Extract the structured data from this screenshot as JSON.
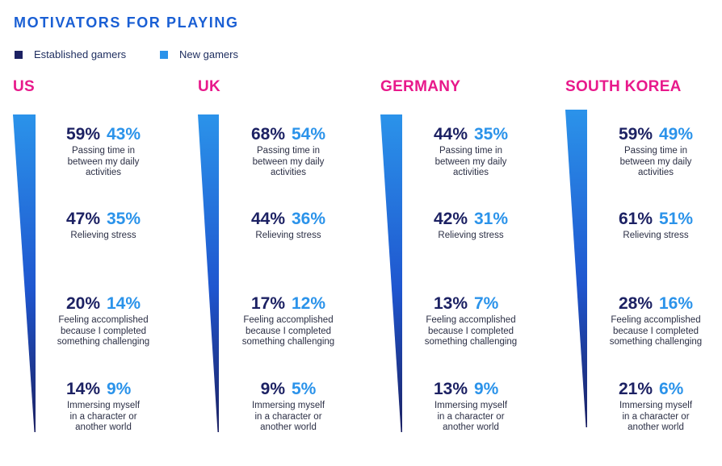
{
  "title": "MOTIVATORS FOR PLAYING",
  "colors": {
    "established": "#1c2163",
    "new": "#2b93ea",
    "country": "#e8198b",
    "title": "#1a5fd4"
  },
  "legend": [
    {
      "label": "Established gamers",
      "color": "#1c2163"
    },
    {
      "label": "New gamers",
      "color": "#2b93ea"
    }
  ],
  "chart_data": {
    "type": "table",
    "title": "MOTIVATORS FOR PLAYING",
    "series": [
      {
        "name": "Established gamers"
      },
      {
        "name": "New gamers"
      }
    ],
    "motivators": [
      "Passing time in between my daily activities",
      "Relieving stress",
      "Feeling accomplished because I completed something challenging",
      "Immersing myself in a character or another world"
    ],
    "countries": [
      {
        "name": "US",
        "items": [
          {
            "established": "59%",
            "new": "43%",
            "label_lines": [
              "Passing time in",
              "between my daily",
              "activities"
            ]
          },
          {
            "established": "47%",
            "new": "35%",
            "label_lines": [
              "Relieving stress"
            ]
          },
          {
            "established": "20%",
            "new": "14%",
            "label_lines": [
              "Feeling accomplished",
              "because I completed",
              "something challenging"
            ]
          },
          {
            "established": "14%",
            "new": "9%",
            "label_lines": [
              "Immersing myself",
              "in a character or",
              "another world"
            ]
          }
        ]
      },
      {
        "name": "UK",
        "items": [
          {
            "established": "68%",
            "new": "54%",
            "label_lines": [
              "Passing time in",
              "between my daily",
              "activities"
            ]
          },
          {
            "established": "44%",
            "new": "36%",
            "label_lines": [
              "Relieving stress"
            ]
          },
          {
            "established": "17%",
            "new": "12%",
            "label_lines": [
              "Feeling accomplished",
              "because I completed",
              "something challenging"
            ]
          },
          {
            "established": "9%",
            "new": "5%",
            "label_lines": [
              "Immersing myself",
              "in a character or",
              "another world"
            ]
          }
        ]
      },
      {
        "name": "GERMANY",
        "items": [
          {
            "established": "44%",
            "new": "35%",
            "label_lines": [
              "Passing time in",
              "between my daily",
              "activities"
            ]
          },
          {
            "established": "42%",
            "new": "31%",
            "label_lines": [
              "Relieving stress"
            ]
          },
          {
            "established": "13%",
            "new": "7%",
            "label_lines": [
              "Feeling accomplished",
              "because I completed",
              "something challenging"
            ]
          },
          {
            "established": "13%",
            "new": "9%",
            "label_lines": [
              "Immersing myself",
              "in a character or",
              "another world"
            ]
          }
        ]
      },
      {
        "name": "SOUTH KOREA",
        "items": [
          {
            "established": "59%",
            "new": "49%",
            "label_lines": [
              "Passing time in",
              "between my daily",
              "activities"
            ]
          },
          {
            "established": "61%",
            "new": "51%",
            "label_lines": [
              "Relieving stress"
            ]
          },
          {
            "established": "28%",
            "new": "16%",
            "label_lines": [
              "Feeling accomplished",
              "because I completed",
              "something challenging"
            ]
          },
          {
            "established": "21%",
            "new": "6%",
            "label_lines": [
              "Immersing myself",
              "in a character or",
              "another world"
            ]
          }
        ]
      }
    ]
  }
}
